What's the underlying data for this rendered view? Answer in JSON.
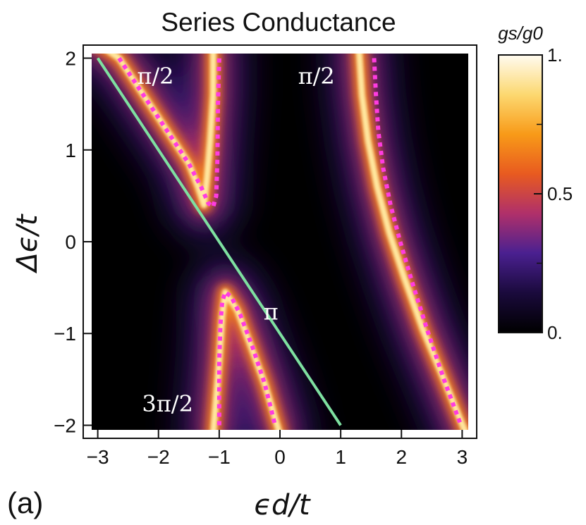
{
  "chart_data": {
    "type": "heatmap",
    "title": "Series Conductance",
    "panel_label": "(a)",
    "xlabel": "ϵd/t",
    "ylabel": "Δϵ/t",
    "xlim": [
      -3.1,
      3.1
    ],
    "ylim": [
      -2.05,
      2.05
    ],
    "xticks": [
      -3,
      -2,
      -1,
      0,
      1,
      2,
      3
    ],
    "xtick_labels": [
      "−3",
      "−2",
      "−1",
      "0",
      "1",
      "2",
      "3"
    ],
    "yticks": [
      -2,
      -1,
      0,
      1,
      2
    ],
    "ytick_labels": [
      "−2",
      "−1",
      "0",
      "1",
      "2"
    ],
    "colorbar": {
      "label": "gs/g0",
      "range": [
        0,
        1
      ],
      "ticks": [
        0,
        0.5,
        1
      ],
      "tick_labels": [
        "0.",
        "0.5",
        "1."
      ],
      "colors": [
        "#000000",
        "#1a0a3c",
        "#4a2090",
        "#b0306a",
        "#e85a20",
        "#f89a18",
        "#fcd870",
        "#fffbf0"
      ]
    },
    "series": [
      {
        "name": "green line",
        "style": "solid",
        "color": "#7ee0a0",
        "x": [
          -3.0,
          1.0
        ],
        "y": [
          2.0,
          -2.0
        ]
      },
      {
        "name": "dotted upper-left",
        "style": "dotted",
        "color": "#ff3ce0",
        "x": [
          -2.65,
          -2.4,
          -2.1,
          -1.8,
          -1.5,
          -1.3,
          -1.18,
          -1.1,
          -1.05,
          -1.03,
          -1.02,
          -1.0
        ],
        "y": [
          2.0,
          1.75,
          1.45,
          1.15,
          0.85,
          0.6,
          0.42,
          0.38,
          0.5,
          0.9,
          1.5,
          2.0
        ]
      },
      {
        "name": "dotted lower-middle",
        "style": "dotted",
        "color": "#ff3ce0",
        "x": [
          -1.0,
          -1.0,
          -0.98,
          -0.95,
          -0.9,
          -0.8,
          -0.65,
          -0.45,
          -0.25,
          -0.08
        ],
        "y": [
          -2.0,
          -1.3,
          -0.9,
          -0.65,
          -0.55,
          -0.6,
          -0.8,
          -1.15,
          -1.55,
          -2.0
        ]
      },
      {
        "name": "dotted right",
        "style": "dotted",
        "color": "#ff3ce0",
        "x": [
          1.55,
          1.58,
          1.62,
          1.7,
          1.82,
          1.98,
          2.18,
          2.42,
          2.7,
          2.98
        ],
        "y": [
          2.0,
          1.6,
          1.2,
          0.8,
          0.4,
          0.0,
          -0.45,
          -0.95,
          -1.5,
          -2.0
        ]
      }
    ],
    "bright_ridges": [
      {
        "x": [
          -3.2,
          -2.65,
          -2.4,
          -2.1,
          -1.8,
          -1.5,
          -1.35,
          -1.25
        ],
        "y": [
          2.25,
          2.0,
          1.75,
          1.45,
          1.15,
          0.85,
          0.6,
          0.4
        ]
      },
      {
        "x": [
          -1.25,
          -1.2,
          -1.15,
          -1.1,
          -1.1
        ],
        "y": [
          0.4,
          0.7,
          1.1,
          1.6,
          2.1
        ]
      },
      {
        "x": [
          -0.9,
          -0.7,
          -0.5,
          -0.25,
          0.0
        ],
        "y": [
          -0.55,
          -0.75,
          -1.1,
          -1.55,
          -2.1
        ]
      },
      {
        "x": [
          -1.1,
          -1.0,
          -0.95,
          -0.9
        ],
        "y": [
          -2.1,
          -1.3,
          -0.8,
          -0.55
        ]
      },
      {
        "x": [
          1.3,
          1.35,
          1.45,
          1.6,
          1.8,
          2.05,
          2.35,
          2.7,
          3.1
        ],
        "y": [
          2.1,
          1.6,
          1.1,
          0.6,
          0.1,
          -0.4,
          -0.95,
          -1.5,
          -2.15
        ]
      }
    ],
    "annotations": [
      {
        "text": "π/2",
        "x": -2.05,
        "y": 1.72
      },
      {
        "text": "π/2",
        "x": 0.6,
        "y": 1.72
      },
      {
        "text": "π",
        "x": -0.15,
        "y": -0.85
      },
      {
        "text": "3π/2",
        "x": -1.85,
        "y": -1.85
      }
    ]
  }
}
